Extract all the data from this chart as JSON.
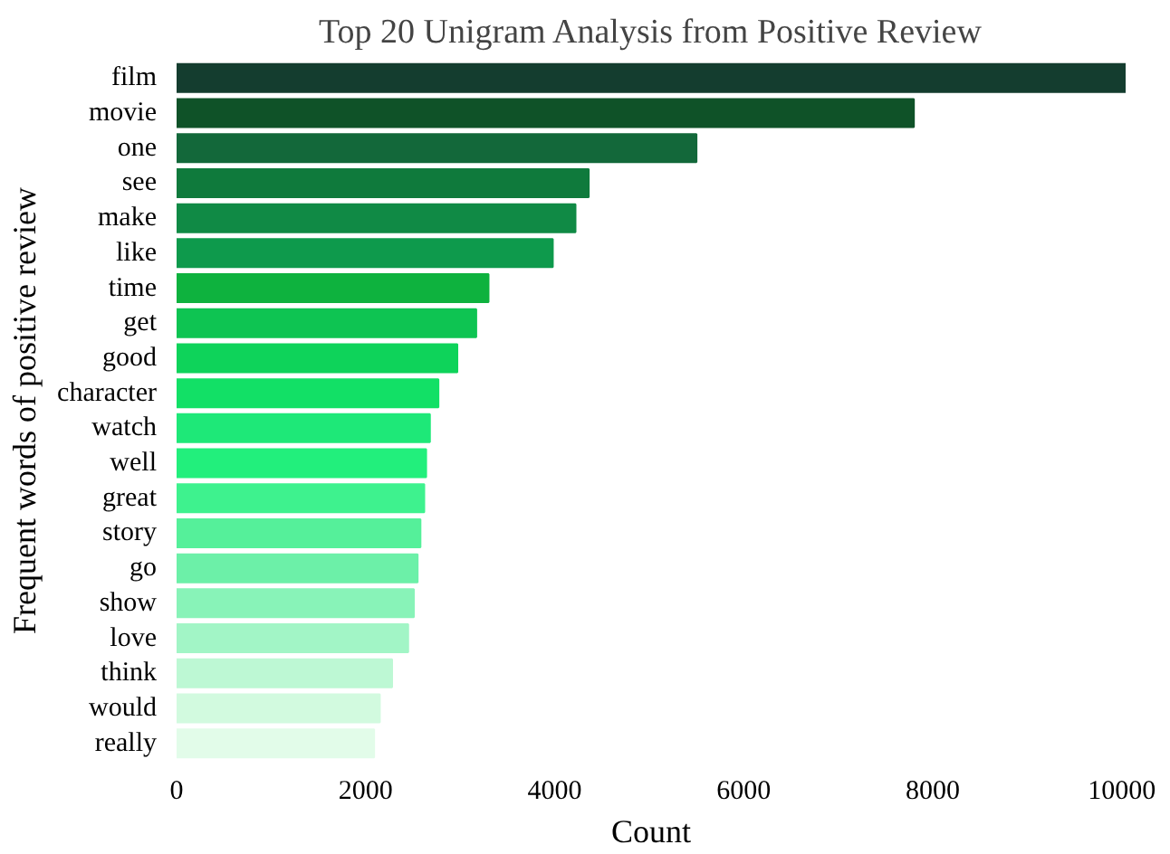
{
  "chart_data": {
    "type": "bar",
    "orientation": "horizontal",
    "title": "Top 20 Unigram Analysis from Positive Review",
    "xlabel": "Count",
    "ylabel": "Frequent words of positive review",
    "categories": [
      "film",
      "movie",
      "one",
      "see",
      "make",
      "like",
      "time",
      "get",
      "good",
      "character",
      "watch",
      "well",
      "great",
      "story",
      "go",
      "show",
      "love",
      "think",
      "would",
      "really"
    ],
    "values": [
      10040,
      7800,
      5500,
      4360,
      4220,
      3980,
      3300,
      3170,
      2970,
      2770,
      2680,
      2640,
      2620,
      2580,
      2550,
      2510,
      2450,
      2280,
      2150,
      2090
    ],
    "colors": [
      "#143d2f",
      "#0f5228",
      "#13683a",
      "#0f7a3c",
      "#108a45",
      "#0e9a4c",
      "#0eb23e",
      "#0ec452",
      "#0ed35a",
      "#12e066",
      "#1ee878",
      "#22ef7c",
      "#3ef28e",
      "#55f09a",
      "#6cf0a8",
      "#88f3b8",
      "#a2f5c6",
      "#bdf8d4",
      "#d2fadf",
      "#e2fce9"
    ],
    "xlim": [
      0,
      10040
    ],
    "xticks": [
      0,
      2000,
      4000,
      6000,
      8000,
      10000
    ],
    "grid": false
  }
}
